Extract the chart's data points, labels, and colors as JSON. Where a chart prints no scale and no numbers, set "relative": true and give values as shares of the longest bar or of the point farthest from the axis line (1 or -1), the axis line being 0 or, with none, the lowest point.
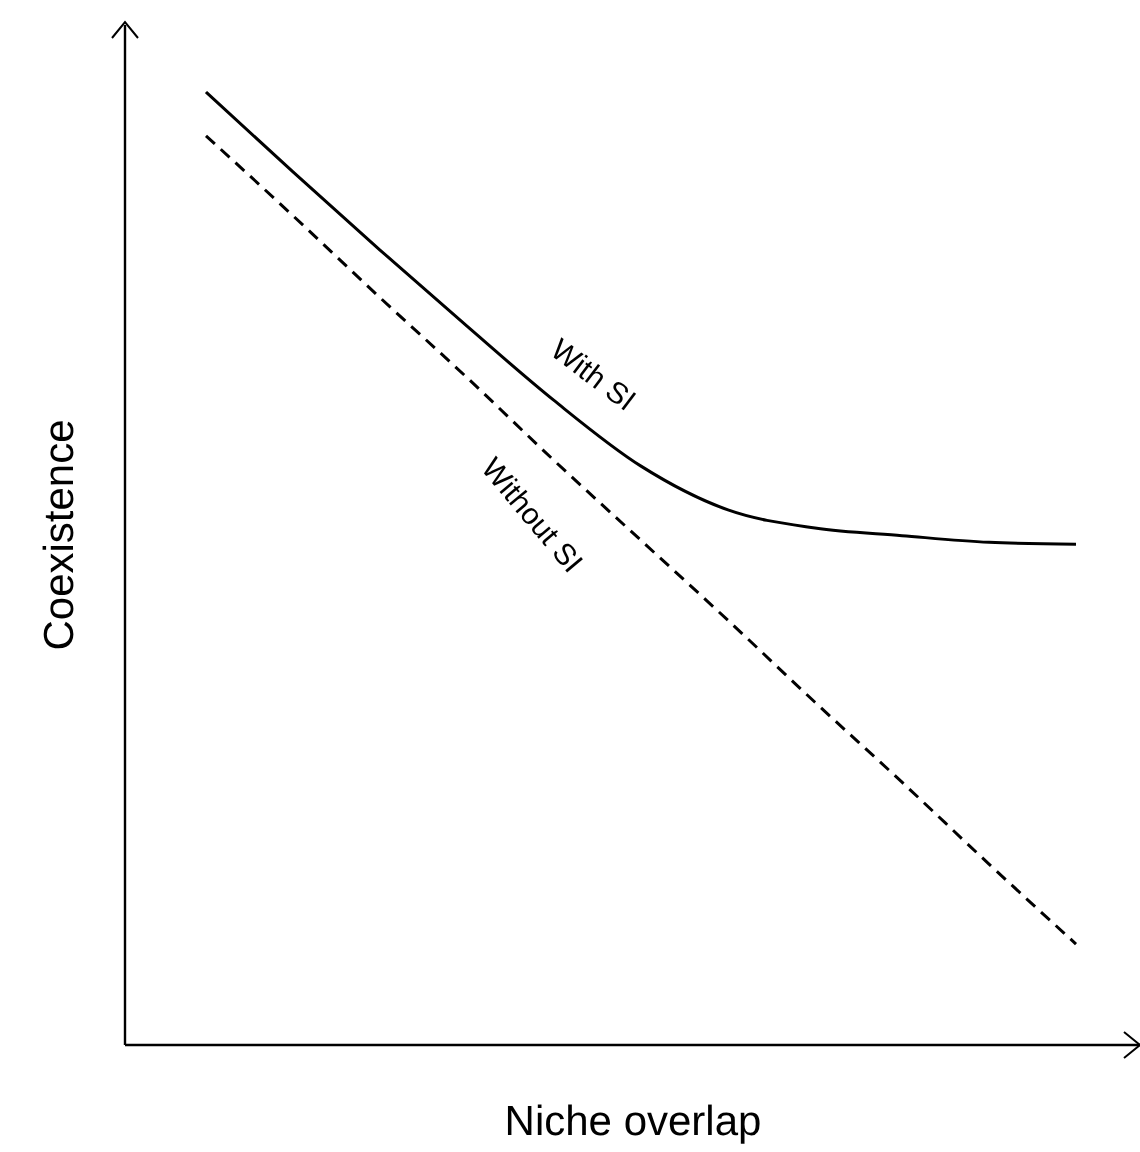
{
  "chart_data": {
    "type": "line",
    "relative": true,
    "xlabel": "Niche overlap",
    "ylabel": "Coexistence",
    "grid": false,
    "tick_labels": false,
    "marker": "none",
    "categories": [
      null,
      null,
      null,
      null,
      null,
      null,
      null,
      null,
      null,
      null,
      null
    ],
    "series": [
      {
        "name": "With SI",
        "color": "#000000",
        "line_style": "solid",
        "values": [
          1,
          0.916,
          0.834,
          0.754,
          0.676,
          0.607,
          0.561,
          0.542,
          0.534,
          0.527,
          0.525
        ]
      },
      {
        "name": "Without SI",
        "color": "#000000",
        "line_style": "dashed",
        "values": [
          0.954,
          0.87,
          0.784,
          0.7,
          0.613,
          0.529,
          0.445,
          0.359,
          0.275,
          0.189,
          0.105
        ]
      }
    ]
  }
}
